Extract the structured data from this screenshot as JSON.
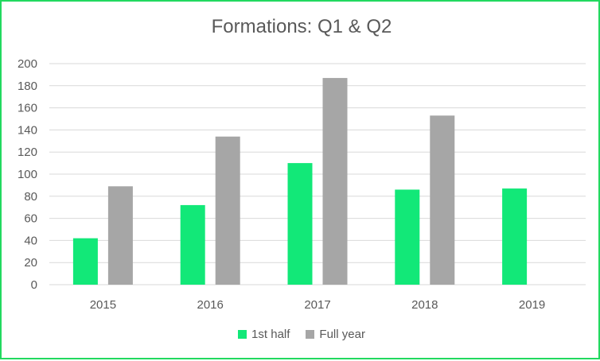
{
  "chart_data": {
    "type": "bar",
    "title": "Formations: Q1 & Q2",
    "xlabel": "",
    "ylabel": "",
    "categories": [
      "2015",
      "2016",
      "2017",
      "2018",
      "2019"
    ],
    "series": [
      {
        "name": "1st half",
        "values": [
          42,
          72,
          110,
          86,
          87
        ],
        "color": "#12e878"
      },
      {
        "name": "Full year",
        "values": [
          89,
          134,
          187,
          153,
          null
        ],
        "color": "#a6a6a6"
      }
    ],
    "ylim": [
      0,
      200
    ],
    "yticks": [
      0,
      20,
      40,
      60,
      80,
      100,
      120,
      140,
      160,
      180,
      200
    ],
    "grid": true,
    "legend_position": "bottom",
    "colors": {
      "frame_border": "#22d95f",
      "gridline": "#d9d9d9",
      "text": "#595959"
    }
  }
}
